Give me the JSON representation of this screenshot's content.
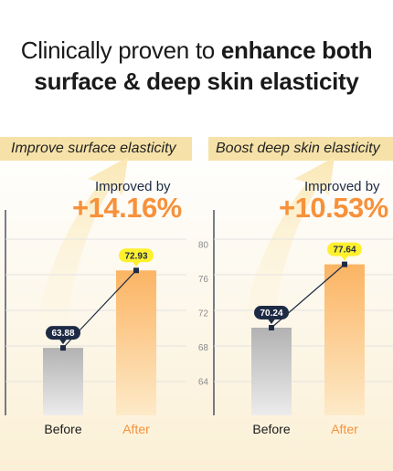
{
  "headline": {
    "line1_regular": "Clinically proven to ",
    "line1_bold": "enhance both",
    "line2_bold": "surface & deep skin elasticity"
  },
  "panels": [
    {
      "band_label": "Improve surface elasticity",
      "improved_label": "Improved by",
      "improvement": "+14.16%"
    },
    {
      "band_label": "Boost deep skin elasticity",
      "improved_label": "Improved by",
      "improvement": "+10.53%"
    }
  ],
  "colors": {
    "accent_orange": "#f7913a",
    "badge_yellow": "#fff02e",
    "badge_navy": "#1e2b45",
    "before_bar_gray": "#b4b4b4",
    "band_yellow": "#f6e2a8"
  },
  "chart_data": [
    {
      "type": "bar",
      "title": "Improve surface elasticity",
      "categories": [
        "Before",
        "After"
      ],
      "values": [
        63.88,
        72.93
      ],
      "value_labels": [
        "63.88",
        "72.93"
      ],
      "ylim": [
        56,
        80
      ],
      "yticks": [],
      "grid": true,
      "connector_line": true
    },
    {
      "type": "bar",
      "title": "Boost deep skin elasticity",
      "categories": [
        "Before",
        "After"
      ],
      "values": [
        70.24,
        77.64
      ],
      "value_labels": [
        "70.24",
        "77.64"
      ],
      "ylim": [
        60,
        84
      ],
      "yticks": [
        "80",
        "76",
        "72",
        "68",
        "64"
      ],
      "grid": true,
      "connector_line": true
    }
  ]
}
